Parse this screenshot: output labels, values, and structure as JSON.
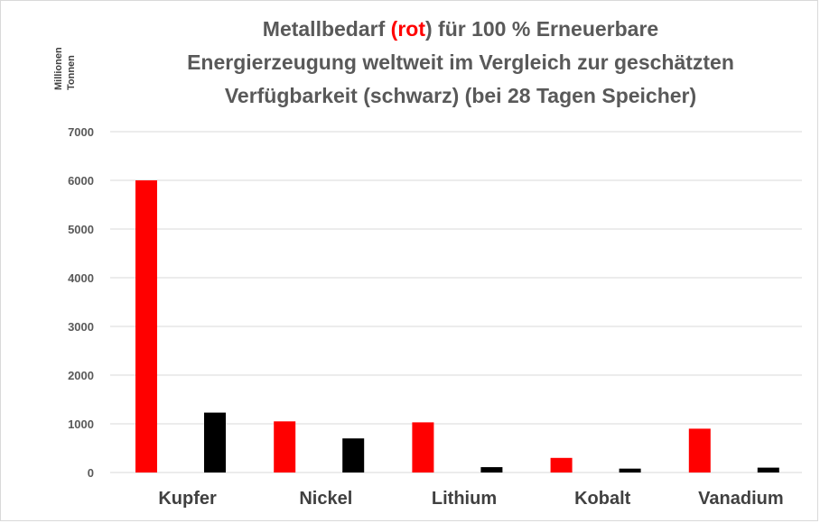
{
  "title": {
    "line1_before": "Metallbedarf ",
    "line1_red": "(rot",
    "line1_after": ") für 100 % Erneuerbare",
    "line2": "Energierzeugung weltweit im Vergleich zur geschätzten",
    "line3": "Verfügbarkeit (schwarz)  (bei 28 Tagen Speicher)"
  },
  "unit_label": {
    "line1": "Millionen",
    "line2": "Tonnen"
  },
  "colors": {
    "demand": "#ff0000",
    "availability": "#000000",
    "grid": "#d9d9d9",
    "title": "#595959"
  },
  "chart_data": {
    "type": "bar",
    "title": "Metallbedarf (rot) für 100 % Erneuerbare Energierzeugung weltweit im Vergleich zur geschätzten Verfügbarkeit (schwarz)  (bei 28 Tagen Speicher)",
    "ylabel": "Millionen Tonnen",
    "xlabel": "",
    "categories": [
      "Kupfer",
      "Nickel",
      "Lithium",
      "Kobalt",
      "Vanadium"
    ],
    "series": [
      {
        "color": "#ff0000",
        "values": [
          6000,
          1050,
          1030,
          300,
          900
        ]
      },
      {
        "color": "#000000",
        "values": [
          1230,
          700,
          110,
          80,
          100
        ]
      }
    ],
    "ylim": [
      0,
      7000
    ],
    "yticks": [
      0,
      1000,
      2000,
      3000,
      4000,
      5000,
      6000,
      7000
    ],
    "grid": true,
    "legend": "none"
  }
}
